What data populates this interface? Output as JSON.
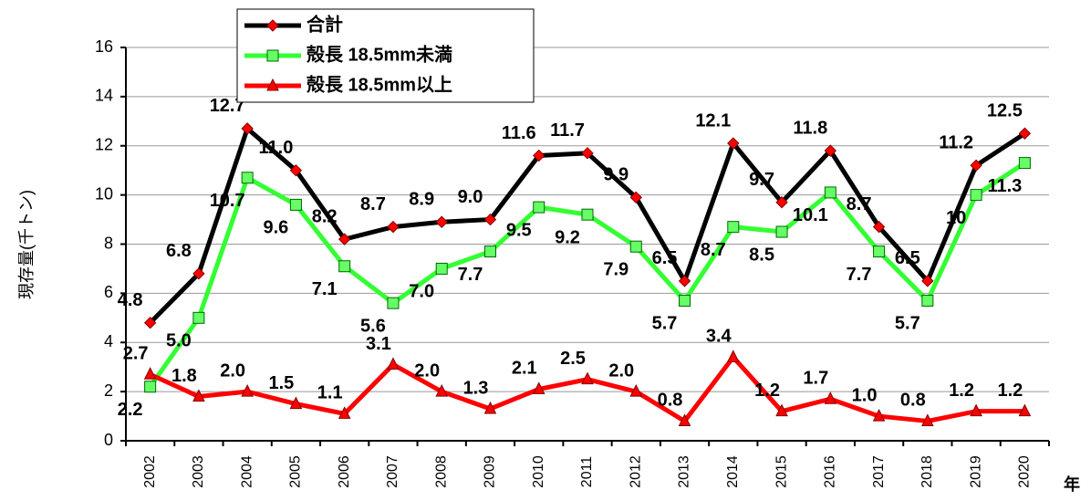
{
  "chart_data": {
    "type": "line",
    "y_label": "現存量(千トン)",
    "x_label": "年",
    "categories": [
      "2002",
      "2003",
      "2004",
      "2005",
      "2006",
      "2007",
      "2008",
      "2009",
      "2010",
      "2011",
      "2012",
      "2013",
      "2014",
      "2015",
      "2016",
      "2017",
      "2018",
      "2019",
      "2020"
    ],
    "series": [
      {
        "name": "合計",
        "color": "#000000",
        "marker": "diamond",
        "marker_color": "#ff0000",
        "values": [
          4.8,
          6.8,
          12.7,
          11.0,
          8.2,
          8.7,
          8.9,
          9.0,
          11.6,
          11.7,
          9.9,
          6.5,
          12.1,
          9.7,
          11.8,
          8.7,
          6.5,
          11.2,
          12.5
        ],
        "value_labels": [
          "4.8",
          "6.8",
          "12.7",
          "11.0",
          "8.2",
          "8.7",
          "8.9",
          "9.0",
          "11.6",
          "11.7",
          "9.9",
          "6.5",
          "12.1",
          "9.7",
          "11.8",
          "8.7",
          "6.5",
          "11.2",
          "12.5"
        ]
      },
      {
        "name": "殻長 18.5mm未満",
        "color": "#33ff33",
        "marker": "square",
        "marker_color": "#66ff66",
        "values": [
          2.2,
          5.0,
          10.7,
          9.6,
          7.1,
          5.6,
          7.0,
          7.7,
          9.5,
          9.2,
          7.9,
          5.7,
          8.7,
          8.5,
          10.1,
          7.7,
          5.7,
          10,
          11.3
        ],
        "value_labels": [
          "2.2",
          "5.0",
          "10.7",
          "9.6",
          "7.1",
          "5.6",
          "7.0",
          "7.7",
          "9.5",
          "9.2",
          "7.9",
          "5.7",
          "8.7",
          "8.5",
          "10.1",
          "7.7",
          "5.7",
          "10",
          "11.3"
        ]
      },
      {
        "name": "殻長 18.5mm以上",
        "color": "#ff0000",
        "marker": "triangle",
        "marker_color": "#ff0000",
        "values": [
          2.7,
          1.8,
          2.0,
          1.5,
          1.1,
          3.1,
          2.0,
          1.3,
          2.1,
          2.5,
          2.0,
          0.8,
          3.4,
          1.2,
          1.7,
          1.0,
          0.8,
          1.2,
          1.2
        ],
        "value_labels": [
          "2.7",
          "1.8",
          "2.0",
          "1.5",
          "1.1",
          "3.1",
          "2.0",
          "1.3",
          "2.1",
          "2.5",
          "2.0",
          "0.8",
          "3.4",
          "1.2",
          "1.7",
          "1.0",
          "0.8",
          "1.2",
          "1.2"
        ]
      }
    ],
    "ylim": [
      0,
      16
    ],
    "yticks": [
      0,
      2,
      4,
      6,
      8,
      10,
      12,
      14,
      16
    ],
    "grid": true
  }
}
